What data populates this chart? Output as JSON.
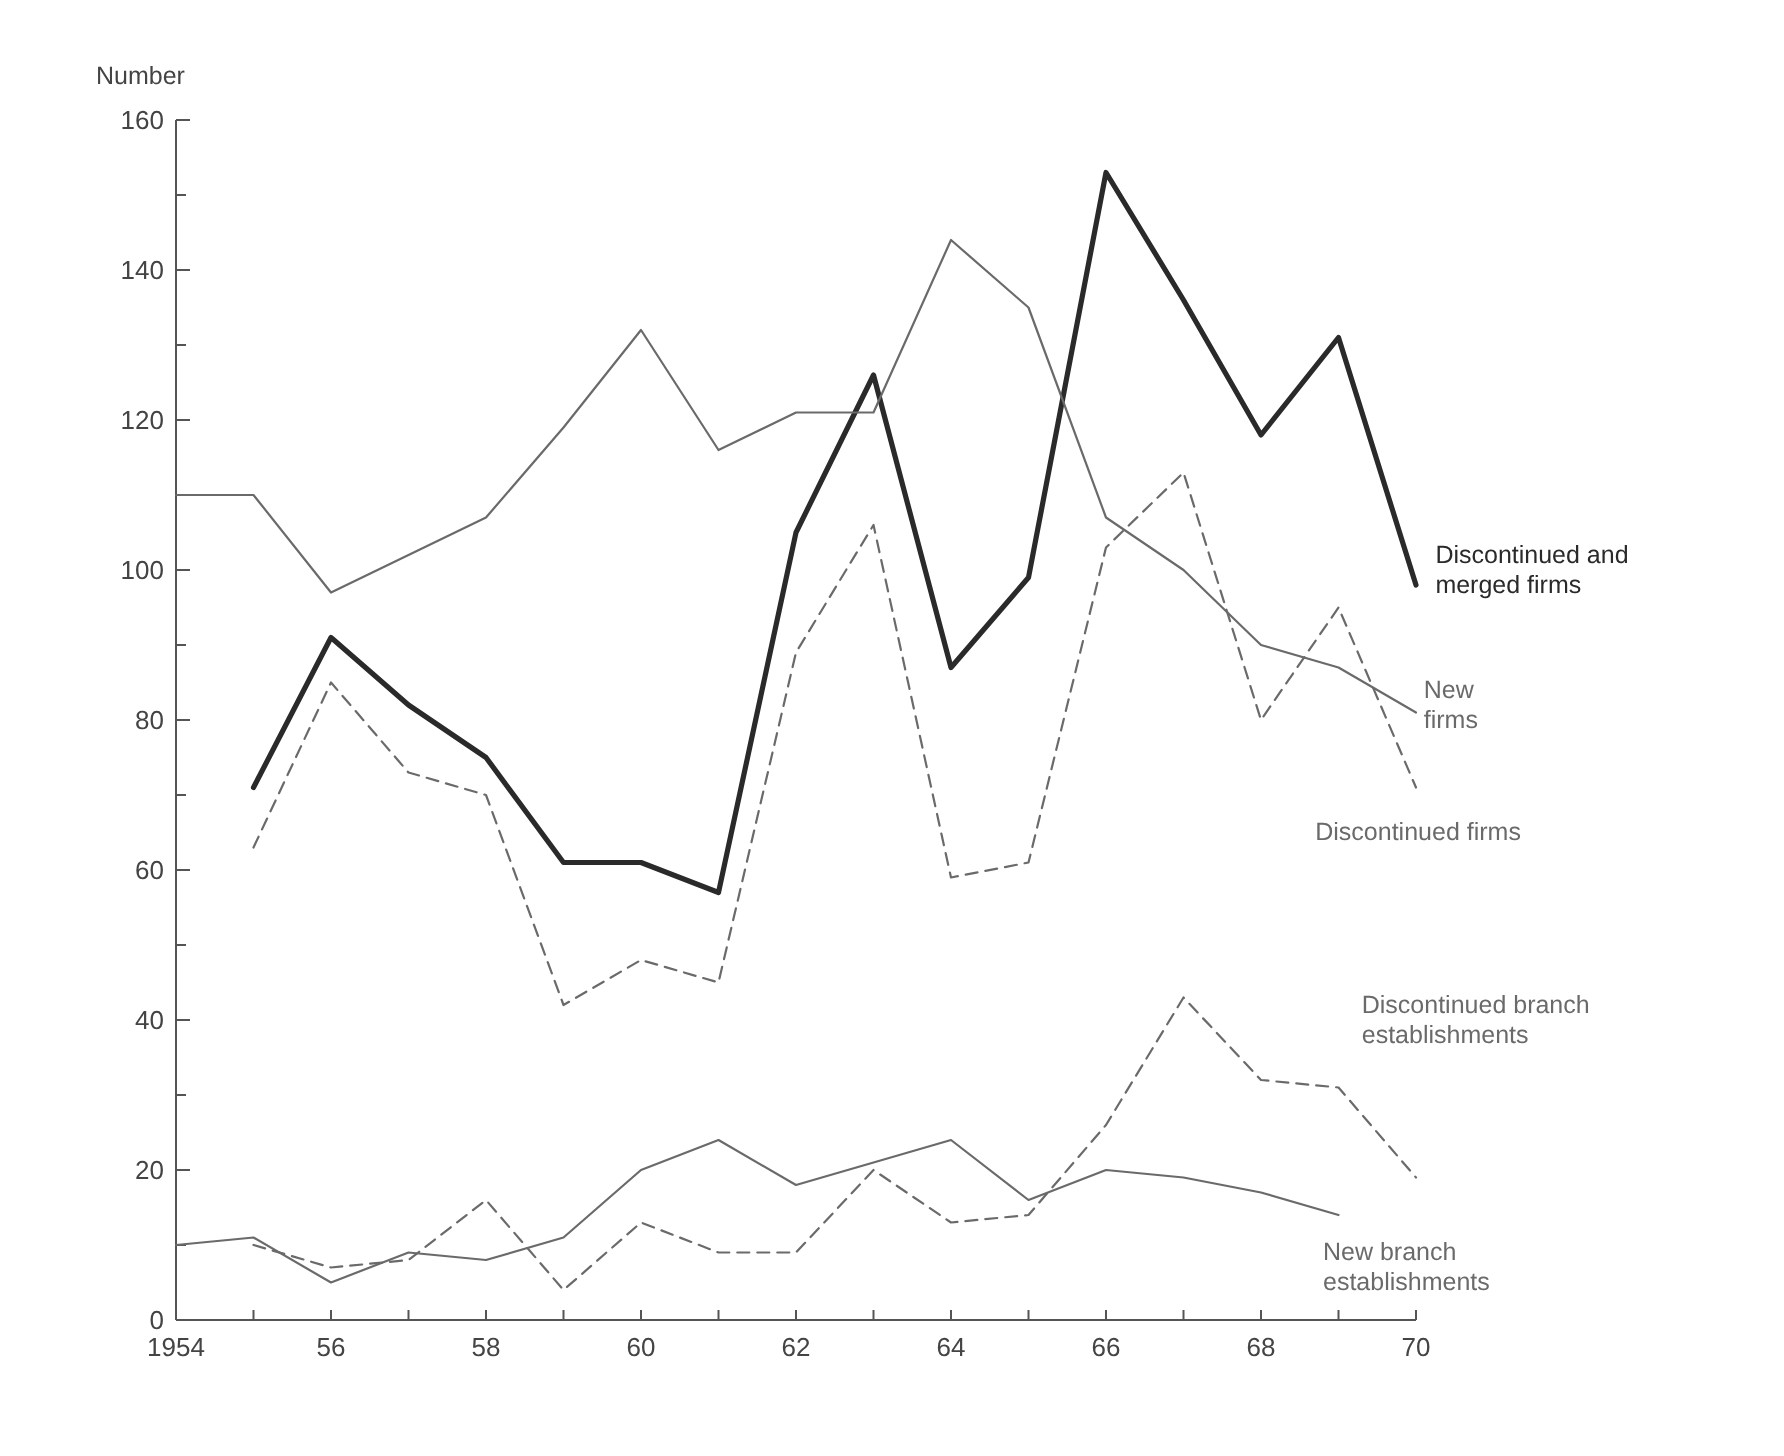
{
  "chart_data": {
    "type": "line",
    "ylabel": "Number",
    "x": [
      1954,
      1955,
      1956,
      1957,
      1958,
      1959,
      1960,
      1961,
      1962,
      1963,
      1964,
      1965,
      1966,
      1967,
      1968,
      1969,
      1970
    ],
    "xlim": [
      1954,
      1970
    ],
    "ylim": [
      0,
      160
    ],
    "xticks": [
      {
        "value": 1954,
        "label": "1954"
      },
      {
        "value": 1955,
        "label": null
      },
      {
        "value": 1956,
        "label": "56"
      },
      {
        "value": 1957,
        "label": null
      },
      {
        "value": 1958,
        "label": "58"
      },
      {
        "value": 1959,
        "label": null
      },
      {
        "value": 1960,
        "label": "60"
      },
      {
        "value": 1961,
        "label": null
      },
      {
        "value": 1962,
        "label": "62"
      },
      {
        "value": 1963,
        "label": null
      },
      {
        "value": 1964,
        "label": "64"
      },
      {
        "value": 1965,
        "label": null
      },
      {
        "value": 1966,
        "label": "66"
      },
      {
        "value": 1967,
        "label": null
      },
      {
        "value": 1968,
        "label": "68"
      },
      {
        "value": 1969,
        "label": null
      },
      {
        "value": 1970,
        "label": "70"
      }
    ],
    "yticks": [
      0,
      {
        "value": 10,
        "label": null
      },
      20,
      {
        "value": 30,
        "label": null
      },
      40,
      {
        "value": 50,
        "label": null
      },
      60,
      {
        "value": 70,
        "label": null
      },
      80,
      {
        "value": 90,
        "label": null
      },
      100,
      {
        "value": 110,
        "label": null
      },
      120,
      {
        "value": 130,
        "label": null
      },
      140,
      {
        "value": 150,
        "label": null
      },
      160
    ],
    "grid": false,
    "marker": "none",
    "series": [
      {
        "name": "Discontinued and merged firms",
        "color": "#2a2a2a",
        "line_style": "solid",
        "values": [
          null,
          71,
          91,
          82,
          75,
          61,
          61,
          57,
          105,
          126,
          87,
          99,
          153,
          136,
          118,
          131,
          98
        ]
      },
      {
        "name": "New firms",
        "color": "#6a6a6a",
        "line_style": "solid",
        "values": [
          110,
          110,
          97,
          102,
          107,
          119,
          132,
          116,
          121,
          121,
          144,
          135,
          107,
          100,
          90,
          87,
          81
        ]
      },
      {
        "name": "Discontinued firms",
        "color": "#6a6a6a",
        "line_style": "dashed",
        "values": [
          null,
          63,
          85,
          73,
          70,
          42,
          48,
          45,
          89,
          106,
          59,
          61,
          103,
          113,
          80,
          95,
          71
        ]
      },
      {
        "name": "Discontinued branch establishments",
        "color": "#6a6a6a",
        "line_style": "dashed",
        "values": [
          null,
          10,
          7,
          8,
          16,
          4,
          13,
          9,
          9,
          20,
          13,
          14,
          26,
          43,
          32,
          31,
          19
        ]
      },
      {
        "name": "New branch establishments",
        "color": "#6a6a6a",
        "line_style": "solid",
        "values": [
          10,
          11,
          5,
          9,
          8,
          11,
          20,
          24,
          18,
          21,
          24,
          16,
          20,
          19,
          17,
          14,
          null
        ]
      }
    ]
  }
}
